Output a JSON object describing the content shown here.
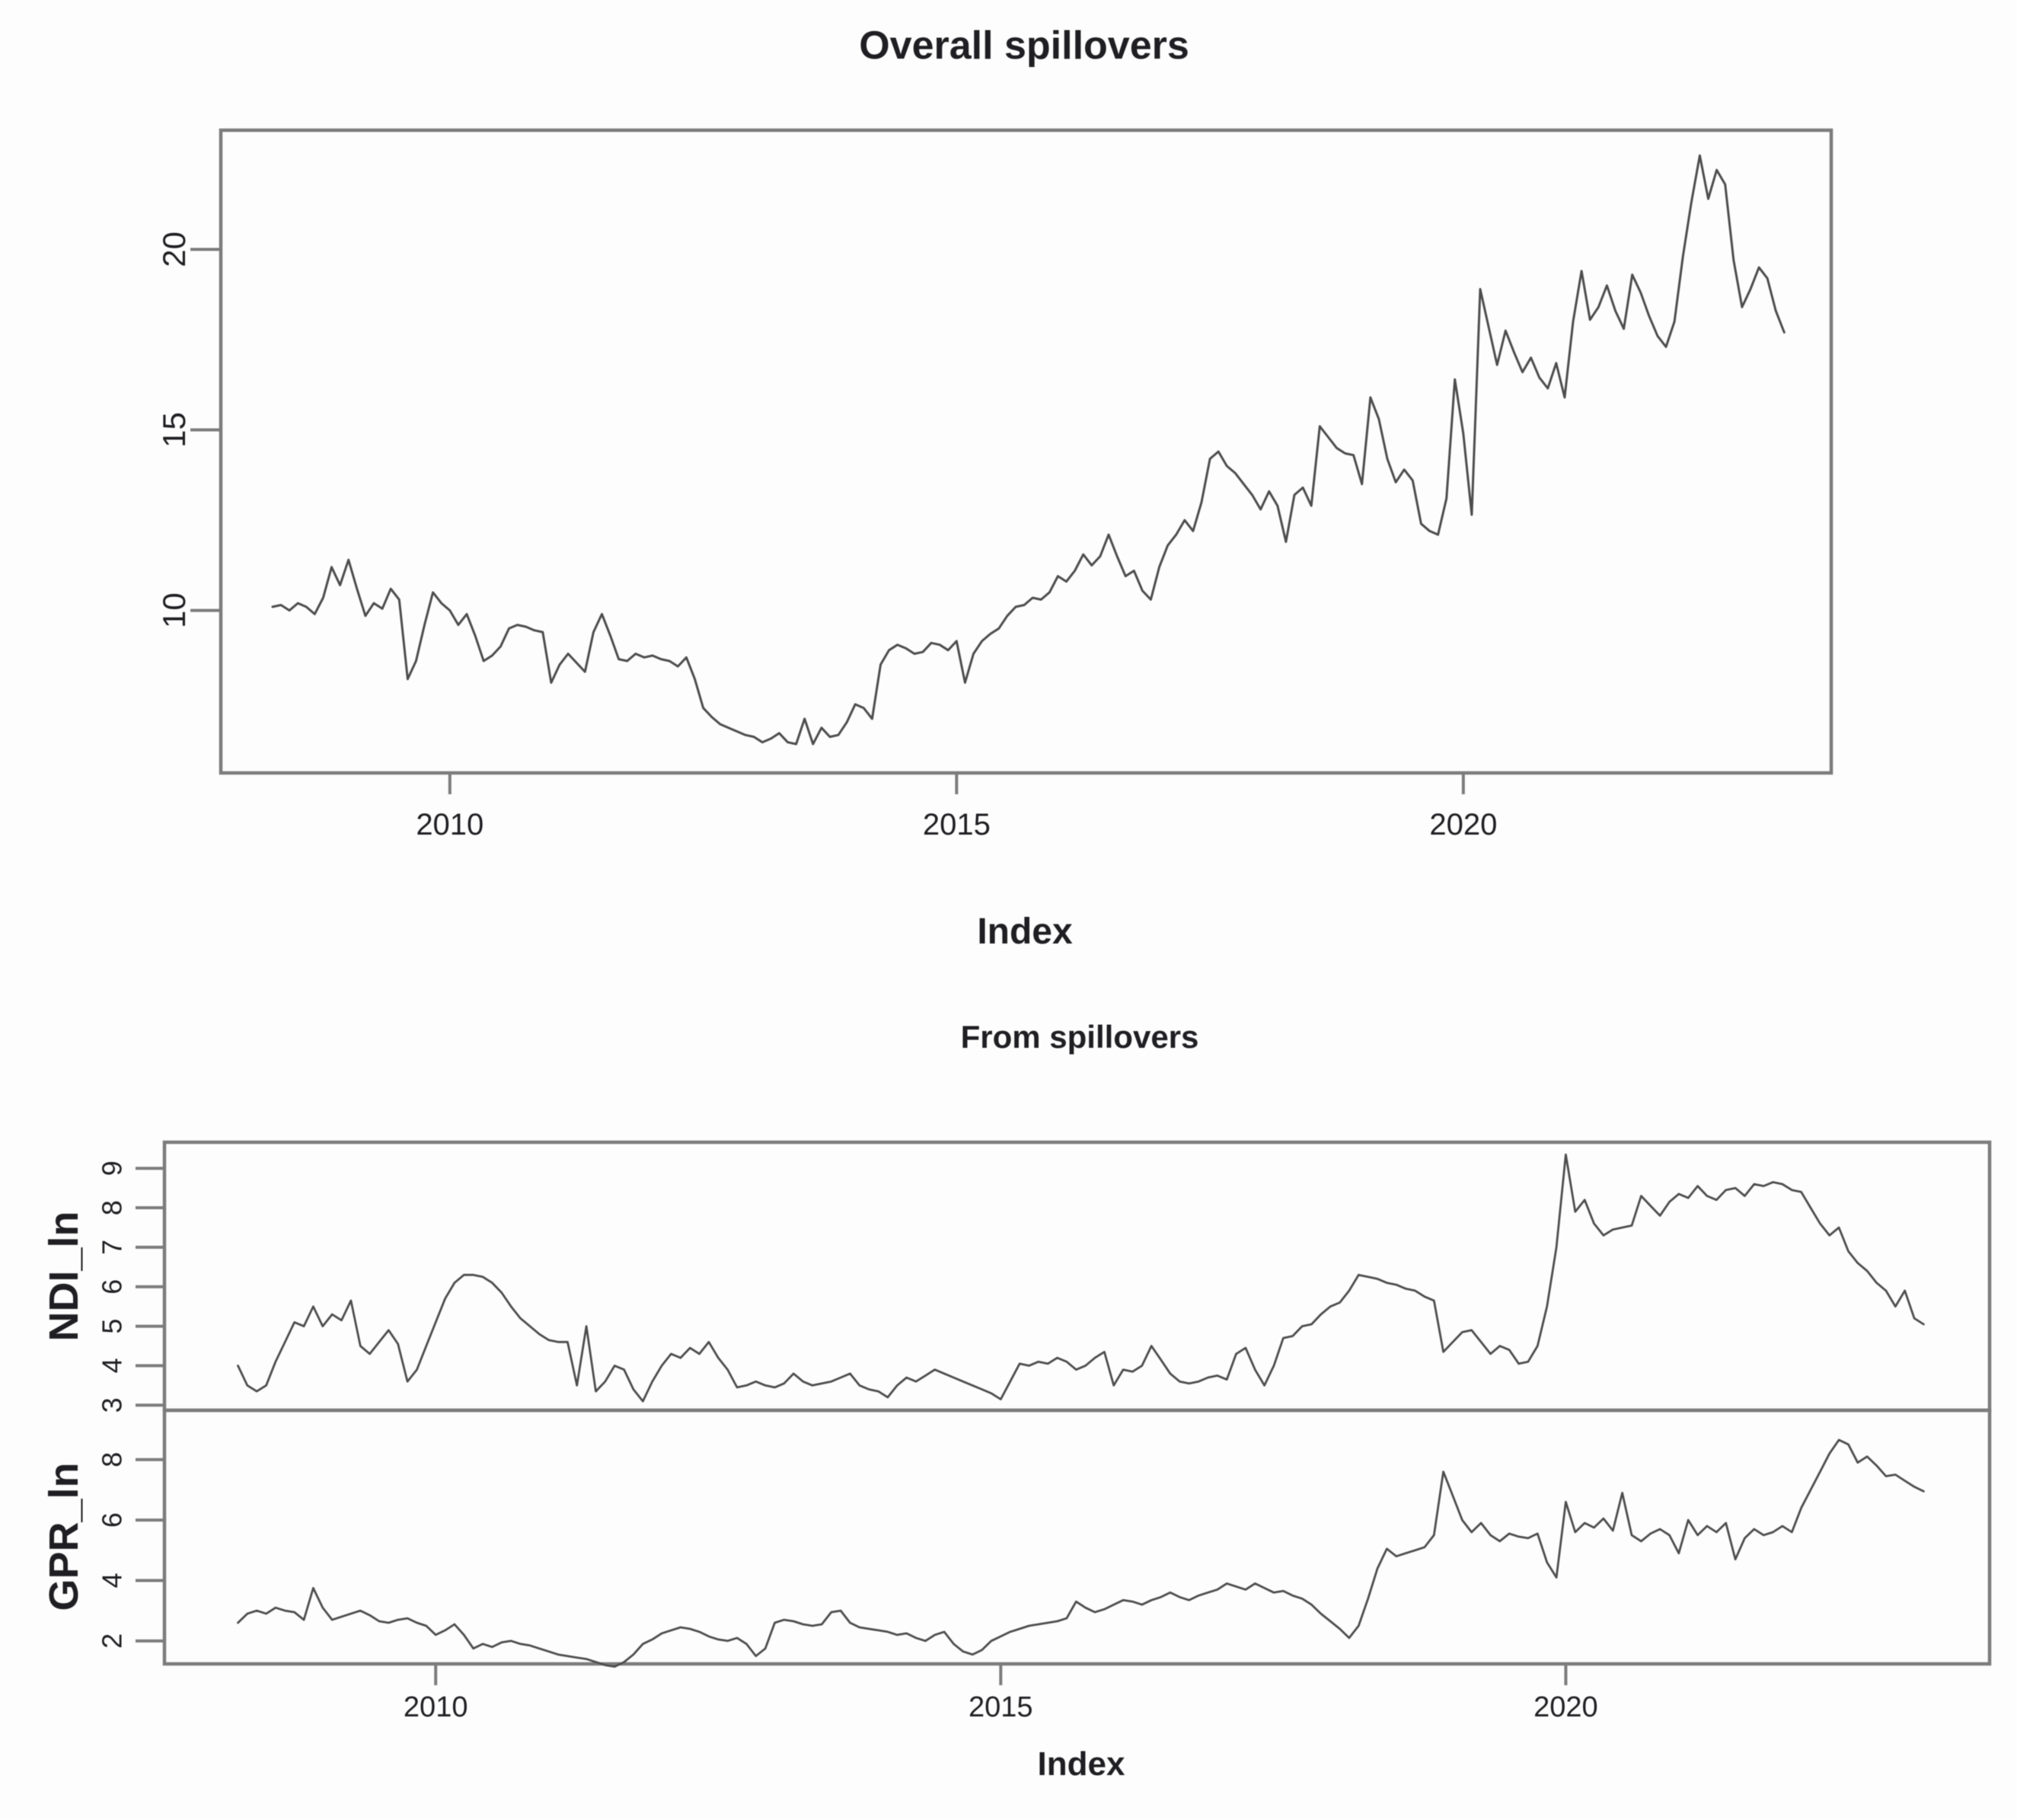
{
  "colors": {
    "background": "#fdfdfd",
    "axis": "#7c7c7c",
    "series_line": "#4d4d4d",
    "text": "#1f1f23"
  },
  "chart_data": [
    {
      "type": "line",
      "title": "Overall spillovers",
      "xlabel": "Index",
      "ylabel": "",
      "legend": "none",
      "grid": false,
      "x_start": 2008.25,
      "x_step": 0.0833333,
      "xlim": [
        2007.74,
        2023.63
      ],
      "xticks": [
        2010,
        2015,
        2020
      ],
      "panels": [
        {
          "ylabel": "",
          "ylim": [
            5.5,
            23.3
          ],
          "yticks": [
            10,
            15,
            20
          ],
          "values": [
            10.1,
            10.15,
            10.0,
            10.2,
            10.1,
            9.9,
            10.35,
            11.2,
            10.7,
            11.4,
            10.6,
            9.85,
            10.2,
            10.05,
            10.6,
            10.3,
            8.1,
            8.6,
            9.6,
            10.5,
            10.2,
            10.0,
            9.6,
            9.9,
            9.3,
            8.6,
            8.75,
            9.0,
            9.5,
            9.6,
            9.55,
            9.45,
            9.4,
            8.0,
            8.5,
            8.8,
            8.55,
            8.3,
            9.4,
            9.9,
            9.3,
            8.65,
            8.6,
            8.8,
            8.7,
            8.75,
            8.65,
            8.6,
            8.45,
            8.7,
            8.1,
            7.3,
            7.05,
            6.85,
            6.75,
            6.65,
            6.55,
            6.5,
            6.35,
            6.45,
            6.6,
            6.35,
            6.3,
            7.0,
            6.3,
            6.75,
            6.5,
            6.55,
            6.9,
            7.4,
            7.3,
            7.0,
            8.5,
            8.9,
            9.05,
            8.95,
            8.8,
            8.85,
            9.1,
            9.05,
            8.9,
            9.15,
            8.0,
            8.8,
            9.15,
            9.35,
            9.5,
            9.85,
            10.1,
            10.15,
            10.35,
            10.3,
            10.5,
            10.95,
            10.8,
            11.1,
            11.55,
            11.25,
            11.5,
            12.1,
            11.5,
            10.95,
            11.1,
            10.55,
            10.3,
            11.2,
            11.8,
            12.1,
            12.5,
            12.2,
            13.0,
            14.2,
            14.4,
            14.0,
            13.8,
            13.5,
            13.2,
            12.8,
            13.3,
            12.9,
            11.9,
            13.2,
            13.4,
            12.9,
            15.1,
            14.8,
            14.5,
            14.35,
            14.3,
            13.5,
            15.9,
            15.3,
            14.2,
            13.55,
            13.9,
            13.6,
            12.4,
            12.2,
            12.1,
            13.1,
            16.4,
            14.9,
            12.65,
            18.9,
            17.85,
            16.8,
            17.75,
            17.15,
            16.6,
            17.0,
            16.45,
            16.15,
            16.85,
            15.9,
            18.0,
            19.4,
            18.05,
            18.4,
            19.0,
            18.3,
            17.8,
            19.3,
            18.8,
            18.15,
            17.6,
            17.3,
            18.0,
            19.8,
            21.3,
            22.6,
            21.4,
            22.2,
            21.8,
            19.7,
            18.4,
            18.9,
            19.5,
            19.2,
            18.3,
            17.7
          ]
        }
      ]
    },
    {
      "type": "line",
      "title": "From spillovers",
      "xlabel": "Index",
      "legend": "none",
      "grid": false,
      "x_start": 2008.25,
      "x_step": 0.0833333,
      "xlim": [
        2007.6,
        2023.75
      ],
      "xticks": [
        2010,
        2015,
        2020
      ],
      "panels": [
        {
          "ylabel": "NDI_ln",
          "ylim": [
            2.87,
            9.66
          ],
          "yticks": [
            3,
            4,
            5,
            6,
            7,
            8,
            9
          ],
          "values": [
            4.0,
            3.5,
            3.35,
            3.5,
            4.1,
            4.6,
            5.1,
            5.0,
            5.5,
            5.0,
            5.3,
            5.15,
            5.65,
            4.5,
            4.3,
            4.6,
            4.9,
            4.55,
            3.6,
            3.9,
            4.5,
            5.1,
            5.7,
            6.1,
            6.3,
            6.3,
            6.25,
            6.1,
            5.85,
            5.5,
            5.2,
            5.0,
            4.8,
            4.65,
            4.6,
            4.6,
            3.5,
            5.0,
            3.35,
            3.6,
            4.0,
            3.9,
            3.4,
            3.1,
            3.6,
            4.0,
            4.3,
            4.2,
            4.45,
            4.3,
            4.6,
            4.2,
            3.9,
            3.45,
            3.5,
            3.6,
            3.5,
            3.45,
            3.55,
            3.8,
            3.6,
            3.5,
            3.55,
            3.6,
            3.7,
            3.8,
            3.5,
            3.4,
            3.35,
            3.2,
            3.5,
            3.7,
            3.6,
            3.75,
            3.9,
            3.8,
            3.7,
            3.6,
            3.5,
            3.4,
            3.3,
            3.15,
            3.6,
            4.05,
            4.0,
            4.1,
            4.05,
            4.2,
            4.1,
            3.9,
            4.0,
            4.2,
            4.35,
            3.5,
            3.9,
            3.85,
            4.0,
            4.5,
            4.15,
            3.8,
            3.6,
            3.55,
            3.6,
            3.7,
            3.75,
            3.65,
            4.3,
            4.45,
            3.9,
            3.5,
            4.0,
            4.7,
            4.75,
            5.0,
            5.05,
            5.3,
            5.5,
            5.6,
            5.9,
            6.3,
            6.25,
            6.2,
            6.1,
            6.05,
            5.95,
            5.9,
            5.75,
            5.65,
            4.35,
            4.6,
            4.85,
            4.9,
            4.6,
            4.3,
            4.5,
            4.4,
            4.05,
            4.1,
            4.5,
            5.5,
            7.0,
            9.35,
            7.9,
            8.2,
            7.6,
            7.3,
            7.45,
            7.5,
            7.55,
            8.3,
            8.05,
            7.8,
            8.15,
            8.35,
            8.25,
            8.55,
            8.3,
            8.2,
            8.45,
            8.5,
            8.3,
            8.6,
            8.55,
            8.65,
            8.6,
            8.45,
            8.4,
            8.0,
            7.6,
            7.3,
            7.5,
            6.9,
            6.6,
            6.4,
            6.1,
            5.9,
            5.5,
            5.9,
            5.2,
            5.05
          ]
        },
        {
          "ylabel": "GPR_ln",
          "ylim": [
            1.24,
            9.63
          ],
          "yticks": [
            2,
            4,
            6,
            8
          ],
          "values": [
            2.6,
            2.9,
            3.0,
            2.9,
            3.1,
            3.0,
            2.95,
            2.7,
            3.75,
            3.1,
            2.7,
            2.8,
            2.9,
            3.0,
            2.85,
            2.65,
            2.6,
            2.7,
            2.75,
            2.6,
            2.5,
            2.2,
            2.35,
            2.55,
            2.2,
            1.75,
            1.9,
            1.8,
            1.95,
            2.0,
            1.9,
            1.85,
            1.75,
            1.65,
            1.55,
            1.5,
            1.45,
            1.4,
            1.3,
            1.2,
            1.15,
            1.3,
            1.55,
            1.9,
            2.05,
            2.25,
            2.35,
            2.45,
            2.4,
            2.3,
            2.15,
            2.05,
            2.0,
            2.1,
            1.9,
            1.5,
            1.75,
            2.6,
            2.7,
            2.65,
            2.55,
            2.5,
            2.55,
            2.95,
            3.0,
            2.6,
            2.45,
            2.4,
            2.35,
            2.3,
            2.2,
            2.25,
            2.1,
            2.0,
            2.2,
            2.3,
            1.9,
            1.65,
            1.55,
            1.7,
            2.0,
            2.15,
            2.3,
            2.4,
            2.5,
            2.55,
            2.6,
            2.65,
            2.75,
            3.3,
            3.1,
            2.95,
            3.05,
            3.2,
            3.35,
            3.3,
            3.2,
            3.35,
            3.45,
            3.6,
            3.45,
            3.35,
            3.5,
            3.6,
            3.7,
            3.9,
            3.8,
            3.7,
            3.9,
            3.75,
            3.6,
            3.65,
            3.5,
            3.4,
            3.2,
            2.9,
            2.65,
            2.4,
            2.1,
            2.5,
            3.4,
            4.4,
            5.05,
            4.8,
            4.9,
            5.0,
            5.1,
            5.5,
            7.6,
            6.8,
            6.0,
            5.6,
            5.9,
            5.5,
            5.3,
            5.55,
            5.45,
            5.4,
            5.55,
            4.6,
            4.1,
            6.6,
            5.6,
            5.9,
            5.75,
            6.05,
            5.65,
            6.9,
            5.5,
            5.3,
            5.55,
            5.7,
            5.5,
            4.9,
            6.0,
            5.5,
            5.8,
            5.6,
            5.9,
            4.7,
            5.4,
            5.7,
            5.5,
            5.6,
            5.8,
            5.6,
            6.4,
            7.0,
            7.6,
            8.2,
            8.65,
            8.5,
            7.9,
            8.1,
            7.8,
            7.45,
            7.5,
            7.3,
            7.1,
            6.95
          ]
        }
      ]
    }
  ]
}
